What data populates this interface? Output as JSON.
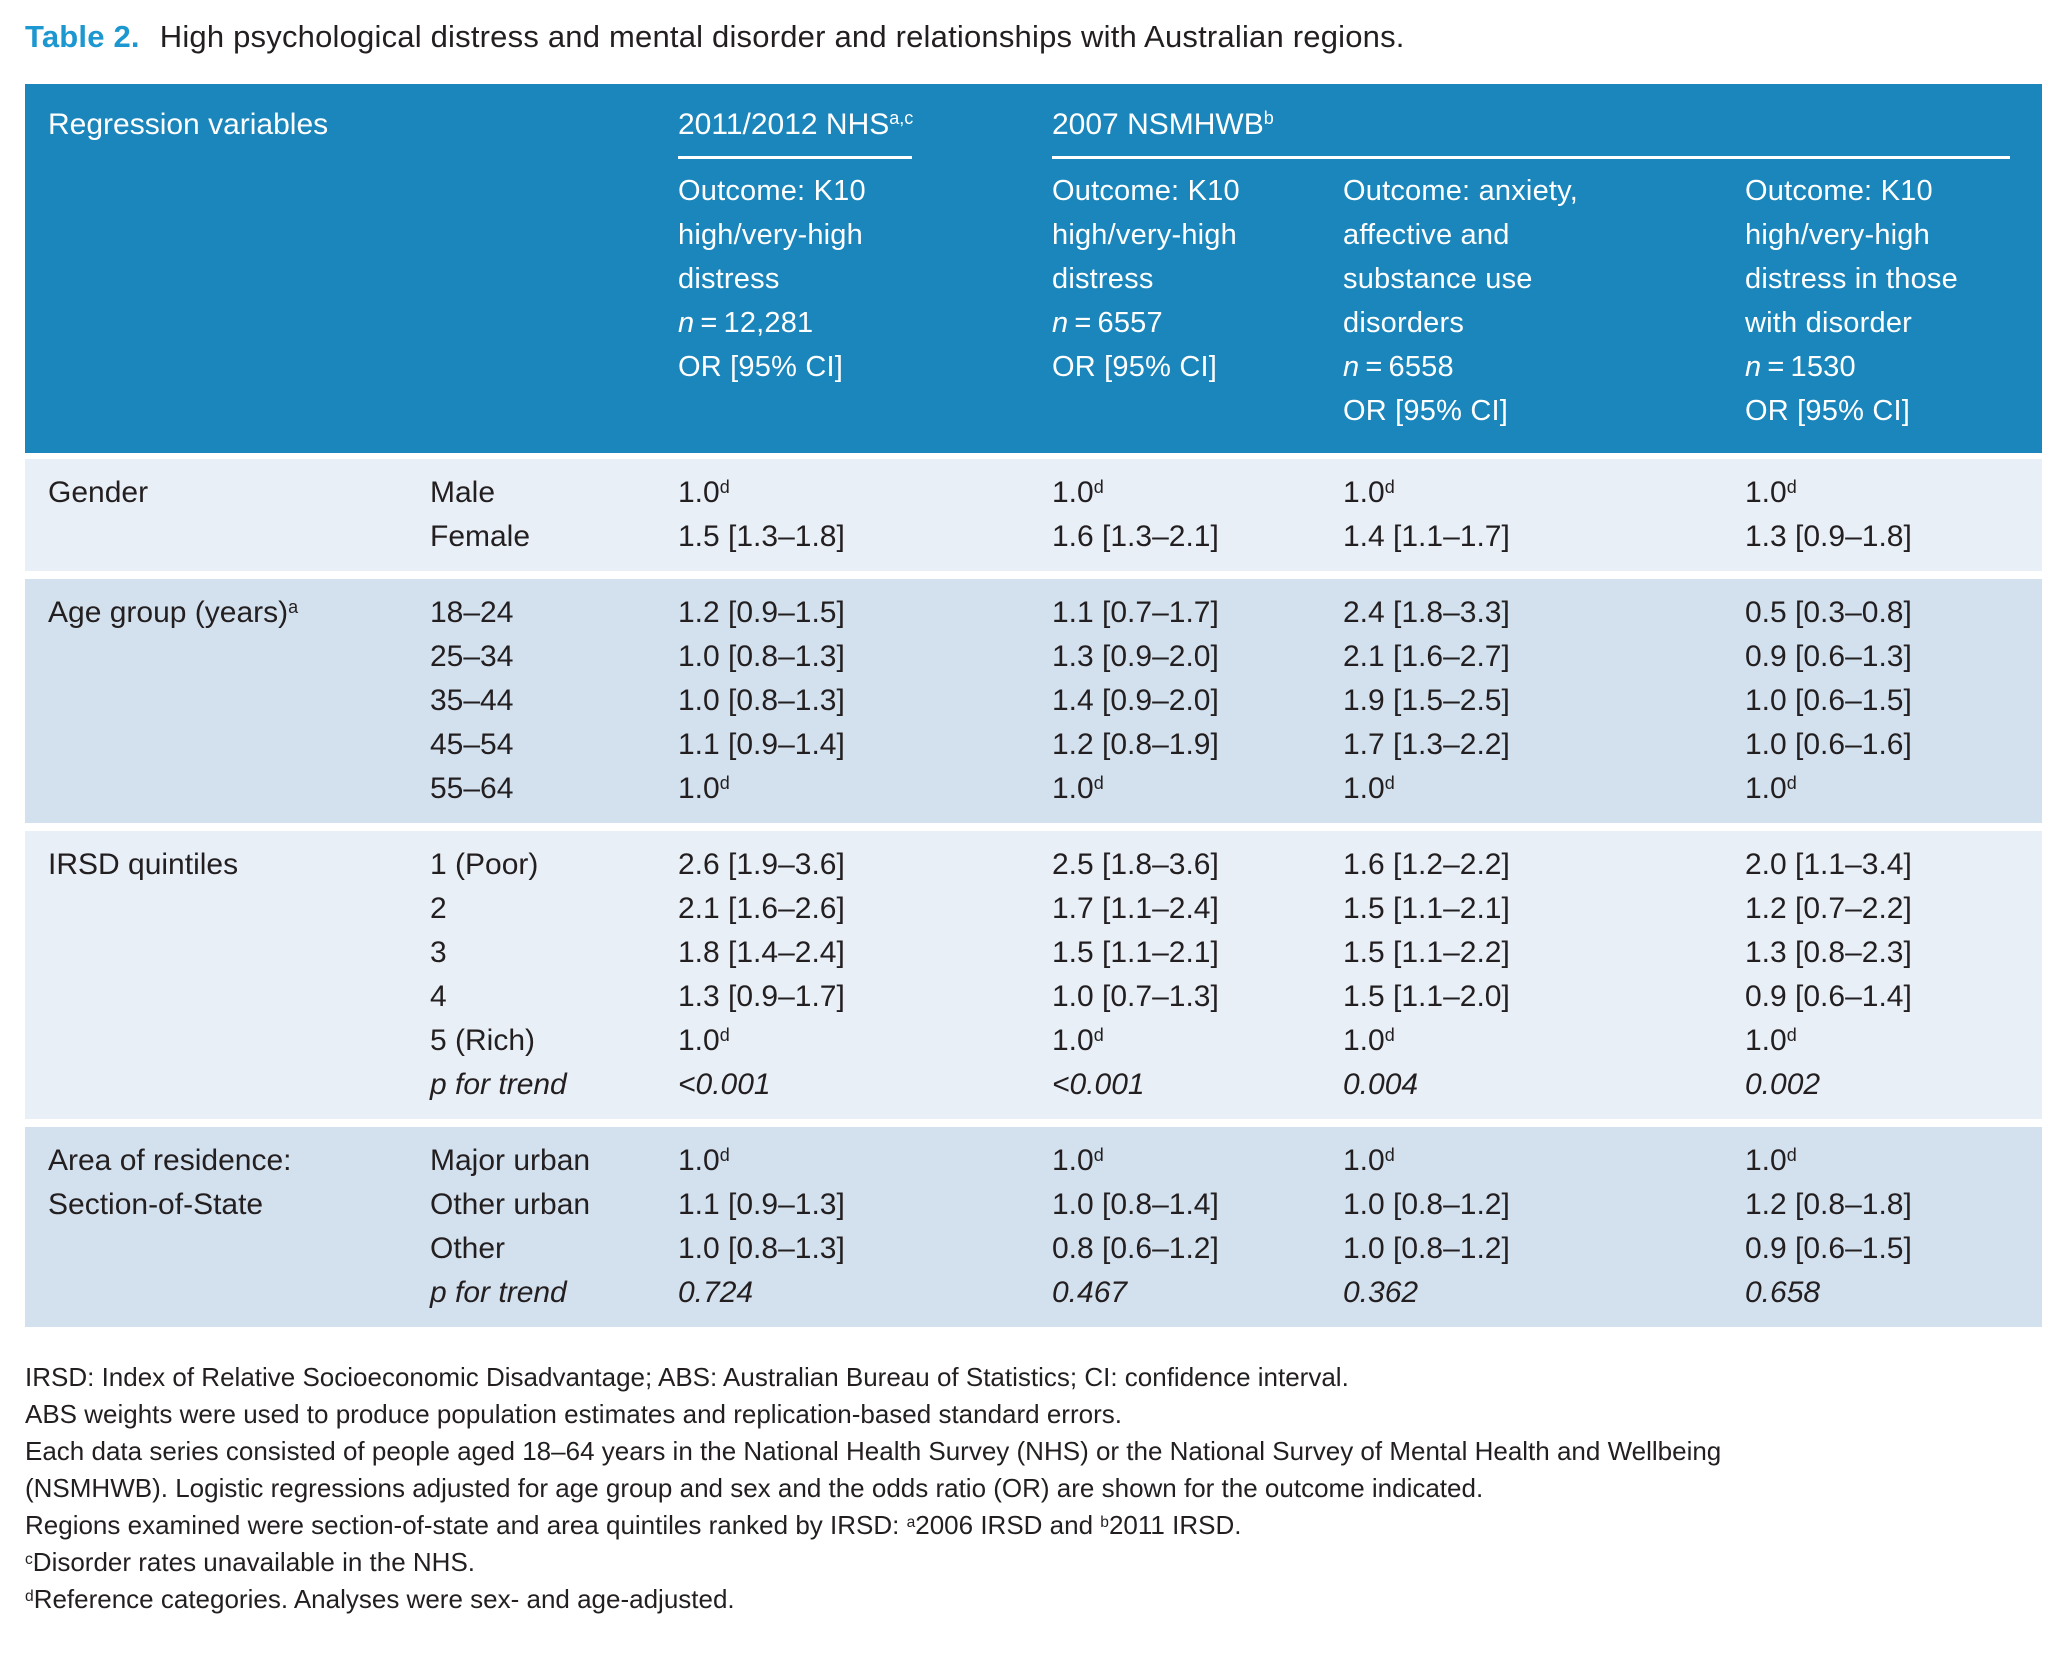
{
  "title": {
    "label": "Table 2.",
    "text": "High psychological distress and mental disorder and relationships with Australian regions."
  },
  "colors": {
    "header_blue": "#1a86bc",
    "title_blue": "#1d97cf",
    "row_light": "#e8eff7",
    "row_dark": "#d3e0ee",
    "text": "#231f20"
  },
  "table": {
    "header": {
      "col1": "Regression variables",
      "spanners": [
        {
          "label": "2011/2012 NHS^a,c"
        },
        {
          "label": "2007 NSMHWB^b"
        }
      ],
      "outcomes": [
        [
          "Outcome: K10",
          "high/very-high",
          "distress",
          "n = 12,281",
          "OR [95% CI]"
        ],
        [
          "Outcome: K10",
          "high/very-high",
          "distress",
          "n = 6557",
          "OR [95% CI]"
        ],
        [
          "Outcome: anxiety,",
          "affective and",
          "substance use",
          "disorders",
          "n = 6558",
          "OR [95% CI]"
        ],
        [
          "Outcome: K10",
          "high/very-high",
          "distress in those",
          "with disorder",
          "n = 1530",
          "OR [95% CI]"
        ]
      ]
    },
    "sections": [
      {
        "label": "Gender",
        "shade": "light",
        "rows": [
          {
            "cat": "Male",
            "vals": [
              "1.0^d",
              "1.0^d",
              "1.0^d",
              "1.0^d"
            ]
          },
          {
            "cat": "Female",
            "vals": [
              "1.5 [1.3–1.8]",
              "1.6 [1.3–2.1]",
              "1.4 [1.1–1.7]",
              "1.3 [0.9–1.8]"
            ]
          }
        ]
      },
      {
        "label": "Age group (years)^a",
        "shade": "dark",
        "rows": [
          {
            "cat": "18–24",
            "vals": [
              "1.2 [0.9–1.5]",
              "1.1 [0.7–1.7]",
              "2.4 [1.8–3.3]",
              "0.5 [0.3–0.8]"
            ]
          },
          {
            "cat": "25–34",
            "vals": [
              "1.0 [0.8–1.3]",
              "1.3 [0.9–2.0]",
              "2.1 [1.6–2.7]",
              "0.9 [0.6–1.3]"
            ]
          },
          {
            "cat": "35–44",
            "vals": [
              "1.0 [0.8–1.3]",
              "1.4 [0.9–2.0]",
              "1.9 [1.5–2.5]",
              "1.0 [0.6–1.5]"
            ]
          },
          {
            "cat": "45–54",
            "vals": [
              "1.1 [0.9–1.4]",
              "1.2 [0.8–1.9]",
              "1.7 [1.3–2.2]",
              "1.0 [0.6–1.6]"
            ]
          },
          {
            "cat": "55–64",
            "vals": [
              "1.0^d",
              "1.0^d",
              "1.0^d",
              "1.0^d"
            ]
          }
        ]
      },
      {
        "label": "IRSD quintiles",
        "shade": "light",
        "rows": [
          {
            "cat": "1 (Poor)",
            "vals": [
              "2.6 [1.9–3.6]",
              "2.5 [1.8–3.6]",
              "1.6 [1.2–2.2]",
              "2.0 [1.1–3.4]"
            ]
          },
          {
            "cat": "2",
            "vals": [
              "2.1 [1.6–2.6]",
              "1.7 [1.1–2.4]",
              "1.5 [1.1–2.1]",
              "1.2 [0.7–2.2]"
            ]
          },
          {
            "cat": "3",
            "vals": [
              "1.8 [1.4–2.4]",
              "1.5 [1.1–2.1]",
              "1.5 [1.1–2.2]",
              "1.3 [0.8–2.3]"
            ]
          },
          {
            "cat": "4",
            "vals": [
              "1.3 [0.9–1.7]",
              "1.0 [0.7–1.3]",
              "1.5 [1.1–2.0]",
              "0.9 [0.6–1.4]"
            ]
          },
          {
            "cat": "5 (Rich)",
            "vals": [
              "1.0^d",
              "1.0^d",
              "1.0^d",
              "1.0^d"
            ]
          },
          {
            "cat": "p for trend",
            "italic": true,
            "vals": [
              "<0.001",
              "<0.001",
              "0.004",
              "0.002"
            ]
          }
        ]
      },
      {
        "label": "Area of residence:\nSection-of-State",
        "shade": "dark",
        "rows": [
          {
            "cat": "Major urban",
            "vals": [
              "1.0^d",
              "1.0^d",
              "1.0^d",
              "1.0^d"
            ]
          },
          {
            "cat": "Other urban",
            "vals": [
              "1.1 [0.9–1.3]",
              "1.0 [0.8–1.4]",
              "1.0 [0.8–1.2]",
              "1.2 [0.8–1.8]"
            ]
          },
          {
            "cat": "Other",
            "vals": [
              "1.0 [0.8–1.3]",
              "0.8 [0.6–1.2]",
              "1.0 [0.8–1.2]",
              "0.9 [0.6–1.5]"
            ]
          },
          {
            "cat": "p for trend",
            "italic": true,
            "vals": [
              "0.724",
              "0.467",
              "0.362",
              "0.658"
            ]
          }
        ]
      }
    ]
  },
  "footnotes": [
    "IRSD: Index of Relative Socioeconomic Disadvantage; ABS: Australian Bureau of Statistics; CI: confidence interval.",
    "ABS weights were used to produce population estimates and replication-based standard errors.",
    "Each data series consisted of people aged 18–64 years in the National Health Survey (NHS) or the National Survey of Mental Health and Wellbeing",
    "(NSMHWB). Logistic regressions adjusted for age group and sex and the odds ratio (OR) are shown for the outcome indicated.",
    "Regions examined were section-of-state and area quintiles ranked by IRSD: ^a2006 IRSD and ^b2011 IRSD.",
    "^cDisorder rates unavailable in the NHS.",
    "^dReference categories. Analyses were sex- and age-adjusted."
  ]
}
